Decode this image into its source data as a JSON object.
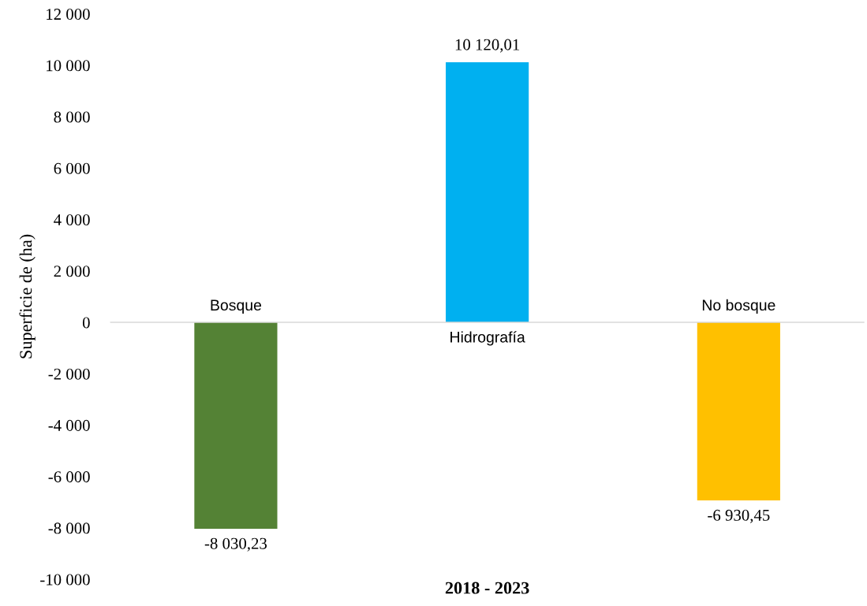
{
  "chart_data": {
    "type": "bar",
    "xlabel": "2018 - 2023",
    "ylabel": "Superficie de (ha)",
    "categories": [
      "Bosque",
      "Hidrografía",
      "No bosque"
    ],
    "values": [
      -8030.23,
      10120.01,
      -6930.45
    ],
    "colors": [
      "#548235",
      "#00b0f0",
      "#ffc000"
    ],
    "value_labels": [
      "-8 030,23",
      "10 120,01",
      "-6 930,45"
    ],
    "ylim": [
      -10000,
      12000
    ],
    "yticks": [
      {
        "value": -10000,
        "label": "-10 000"
      },
      {
        "value": -8000,
        "label": "-8 000"
      },
      {
        "value": -6000,
        "label": "-6 000"
      },
      {
        "value": -4000,
        "label": "-4 000"
      },
      {
        "value": -2000,
        "label": "-2 000"
      },
      0,
      {
        "value": 2000,
        "label": "2 000"
      },
      {
        "value": 4000,
        "label": "4 000"
      },
      {
        "value": 6000,
        "label": "6 000"
      },
      {
        "value": 8000,
        "label": "8 000"
      },
      {
        "value": 10000,
        "label": "10 000"
      },
      {
        "value": 12000,
        "label": "12 000"
      }
    ],
    "grid": false
  }
}
